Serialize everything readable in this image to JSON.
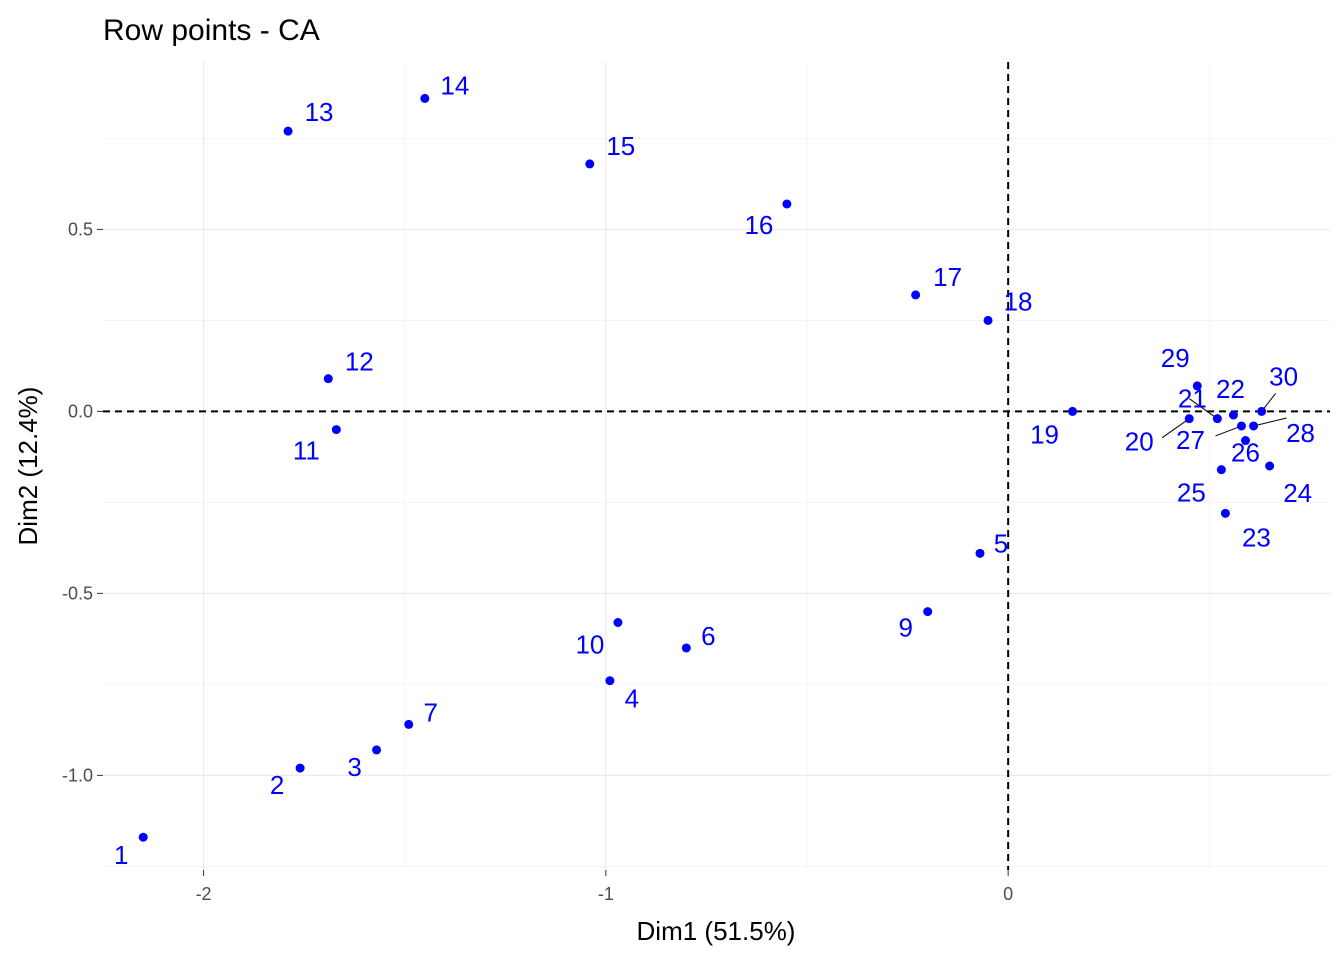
{
  "chart_data": {
    "type": "scatter",
    "title": "Row points - CA",
    "xlabel": "Dim1 (51.5%)",
    "ylabel": "Dim2 (12.4%)",
    "xlim": [
      -2.25,
      0.8
    ],
    "ylim": [
      -1.26,
      0.96
    ],
    "x_ticks": [
      -2,
      -1,
      0
    ],
    "x_tick_labels": [
      "-2",
      "-1",
      "0"
    ],
    "y_ticks": [
      -1.0,
      -0.5,
      0.0,
      0.5
    ],
    "y_tick_labels": [
      "-1.0",
      "-0.5",
      "0.0",
      "0.5"
    ],
    "grid": true,
    "reference_lines": {
      "x": 0,
      "y": 0,
      "style": "dashed"
    },
    "point_color": "#0000ff",
    "points": [
      {
        "label": "1",
        "x": -2.15,
        "y": -1.17
      },
      {
        "label": "2",
        "x": -1.76,
        "y": -0.98
      },
      {
        "label": "3",
        "x": -1.57,
        "y": -0.93
      },
      {
        "label": "4",
        "x": -0.99,
        "y": -0.74
      },
      {
        "label": "5",
        "x": -0.07,
        "y": -0.39
      },
      {
        "label": "6",
        "x": -0.8,
        "y": -0.65
      },
      {
        "label": "7",
        "x": -1.49,
        "y": -0.86
      },
      {
        "label": "9",
        "x": -0.2,
        "y": -0.55
      },
      {
        "label": "10",
        "x": -0.97,
        "y": -0.58
      },
      {
        "label": "11",
        "x": -1.67,
        "y": -0.05
      },
      {
        "label": "12",
        "x": -1.69,
        "y": 0.09
      },
      {
        "label": "13",
        "x": -1.79,
        "y": 0.77
      },
      {
        "label": "14",
        "x": -1.45,
        "y": 0.86
      },
      {
        "label": "15",
        "x": -1.04,
        "y": 0.68
      },
      {
        "label": "16",
        "x": -0.55,
        "y": 0.57
      },
      {
        "label": "17",
        "x": -0.23,
        "y": 0.32
      },
      {
        "label": "18",
        "x": -0.05,
        "y": 0.25
      },
      {
        "label": "19",
        "x": 0.16,
        "y": 0.0
      },
      {
        "label": "20",
        "x": 0.45,
        "y": -0.02
      },
      {
        "label": "21",
        "x": 0.52,
        "y": -0.02
      },
      {
        "label": "22",
        "x": 0.56,
        "y": -0.01
      },
      {
        "label": "23",
        "x": 0.54,
        "y": -0.28
      },
      {
        "label": "24",
        "x": 0.65,
        "y": -0.15
      },
      {
        "label": "25",
        "x": 0.53,
        "y": -0.16
      },
      {
        "label": "26",
        "x": 0.59,
        "y": -0.08
      },
      {
        "label": "27",
        "x": 0.58,
        "y": -0.04
      },
      {
        "label": "28",
        "x": 0.61,
        "y": -0.04
      },
      {
        "label": "29",
        "x": 0.47,
        "y": 0.07
      },
      {
        "label": "30",
        "x": 0.63,
        "y": 0.0
      }
    ]
  }
}
